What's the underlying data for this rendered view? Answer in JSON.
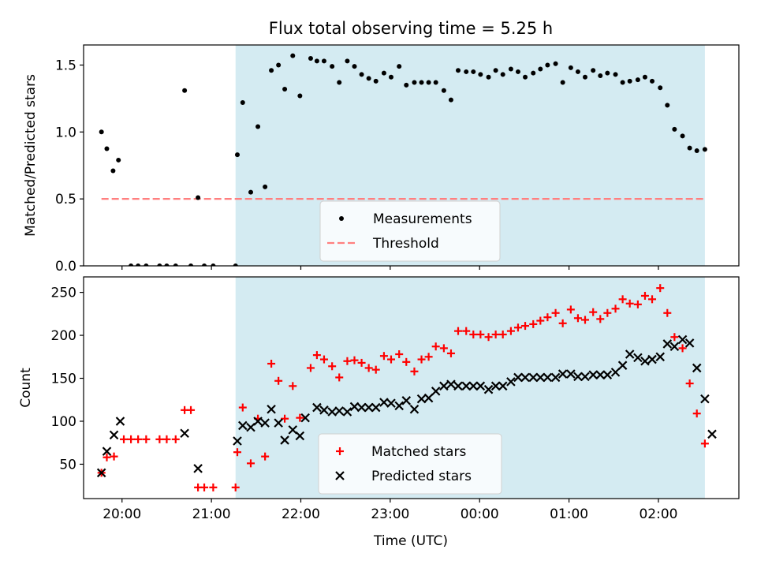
{
  "chart_data": {
    "title": "Flux total observing time = 5.25 h",
    "xlabel": "Time (UTC)",
    "x_unit": "hours after 19:00 UTC (continuous across midnight)",
    "xlim": [
      0.57,
      7.9
    ],
    "x_ticks": [
      1,
      2,
      3,
      4,
      5,
      6,
      7
    ],
    "x_tick_labels": [
      "20:00",
      "21:00",
      "22:00",
      "23:00",
      "00:00",
      "01:00",
      "02:00"
    ],
    "shaded_interval": {
      "start": 2.27,
      "end": 7.52,
      "color": "#d4ebf2"
    },
    "panels": [
      {
        "type": "scatter",
        "ylabel": "Matched/Predicted stars",
        "ylim": [
          0,
          1.65
        ],
        "y_ticks": [
          0.0,
          0.5,
          1.0,
          1.5
        ],
        "y_tick_labels": [
          "0.0",
          "0.5",
          "1.0",
          "1.5"
        ],
        "legend_position": "bottom-center",
        "threshold": {
          "name": "Threshold",
          "value": 0.5,
          "x_start": 0.77,
          "x_end": 7.52,
          "color": "#ff7f7f"
        },
        "series": [
          {
            "name": "Measurements",
            "color": "#000000",
            "marker": "dot",
            "points": [
              [
                0.77,
                1.0
              ],
              [
                0.83,
                0.875
              ],
              [
                0.9,
                0.71
              ],
              [
                0.96,
                0.79
              ],
              [
                1.1,
                0.0
              ],
              [
                1.18,
                0.0
              ],
              [
                1.27,
                0.0
              ],
              [
                1.42,
                0.0
              ],
              [
                1.5,
                0.0
              ],
              [
                1.6,
                0.0
              ],
              [
                1.7,
                1.31
              ],
              [
                1.77,
                0.0
              ],
              [
                1.85,
                0.51
              ],
              [
                1.92,
                0.0
              ],
              [
                2.02,
                0.0
              ],
              [
                2.27,
                0.0
              ],
              [
                2.29,
                0.83
              ],
              [
                2.35,
                1.22
              ],
              [
                2.44,
                0.55
              ],
              [
                2.52,
                1.04
              ],
              [
                2.6,
                0.59
              ],
              [
                2.67,
                1.46
              ],
              [
                2.75,
                1.5
              ],
              [
                2.82,
                1.32
              ],
              [
                2.91,
                1.57
              ],
              [
                2.99,
                1.27
              ],
              [
                3.11,
                1.55
              ],
              [
                3.18,
                1.53
              ],
              [
                3.26,
                1.53
              ],
              [
                3.35,
                1.49
              ],
              [
                3.43,
                1.37
              ],
              [
                3.52,
                1.53
              ],
              [
                3.6,
                1.49
              ],
              [
                3.68,
                1.43
              ],
              [
                3.76,
                1.4
              ],
              [
                3.84,
                1.38
              ],
              [
                3.93,
                1.44
              ],
              [
                4.01,
                1.41
              ],
              [
                4.1,
                1.49
              ],
              [
                4.18,
                1.35
              ],
              [
                4.27,
                1.37
              ],
              [
                4.35,
                1.37
              ],
              [
                4.43,
                1.37
              ],
              [
                4.51,
                1.37
              ],
              [
                4.6,
                1.31
              ],
              [
                4.68,
                1.24
              ],
              [
                4.76,
                1.46
              ],
              [
                4.85,
                1.45
              ],
              [
                4.93,
                1.45
              ],
              [
                5.01,
                1.43
              ],
              [
                5.1,
                1.41
              ],
              [
                5.18,
                1.46
              ],
              [
                5.26,
                1.43
              ],
              [
                5.35,
                1.47
              ],
              [
                5.43,
                1.45
              ],
              [
                5.51,
                1.41
              ],
              [
                5.6,
                1.44
              ],
              [
                5.68,
                1.47
              ],
              [
                5.76,
                1.5
              ],
              [
                5.85,
                1.51
              ],
              [
                5.93,
                1.37
              ],
              [
                6.02,
                1.48
              ],
              [
                6.1,
                1.45
              ],
              [
                6.18,
                1.41
              ],
              [
                6.27,
                1.46
              ],
              [
                6.35,
                1.42
              ],
              [
                6.43,
                1.44
              ],
              [
                6.52,
                1.43
              ],
              [
                6.6,
                1.37
              ],
              [
                6.68,
                1.38
              ],
              [
                6.77,
                1.39
              ],
              [
                6.85,
                1.41
              ],
              [
                6.93,
                1.38
              ],
              [
                7.02,
                1.33
              ],
              [
                7.1,
                1.2
              ],
              [
                7.18,
                1.02
              ],
              [
                7.27,
                0.97
              ],
              [
                7.35,
                0.88
              ],
              [
                7.43,
                0.86
              ],
              [
                7.52,
                0.87
              ]
            ]
          }
        ]
      },
      {
        "type": "scatter",
        "ylabel": "Count",
        "ylim": [
          10,
          268
        ],
        "y_ticks": [
          50,
          100,
          150,
          200,
          250
        ],
        "y_tick_labels": [
          "50",
          "100",
          "150",
          "200",
          "250"
        ],
        "legend_position": "bottom-center",
        "series": [
          {
            "name": "Matched stars",
            "color": "#ff0000",
            "marker": "plus",
            "points": [
              [
                0.77,
                40
              ],
              [
                0.83,
                58
              ],
              [
                0.91,
                59
              ],
              [
                1.02,
                79
              ],
              [
                1.1,
                79
              ],
              [
                1.18,
                79
              ],
              [
                1.27,
                79
              ],
              [
                1.42,
                79
              ],
              [
                1.5,
                79
              ],
              [
                1.6,
                79
              ],
              [
                1.7,
                113
              ],
              [
                1.77,
                113
              ],
              [
                1.85,
                23
              ],
              [
                1.92,
                23
              ],
              [
                2.02,
                23
              ],
              [
                2.27,
                23
              ],
              [
                2.29,
                64
              ],
              [
                2.35,
                116
              ],
              [
                2.44,
                51
              ],
              [
                2.52,
                103
              ],
              [
                2.6,
                59
              ],
              [
                2.67,
                167
              ],
              [
                2.75,
                147
              ],
              [
                2.82,
                103
              ],
              [
                2.91,
                141
              ],
              [
                2.99,
                104
              ],
              [
                3.11,
                162
              ],
              [
                3.18,
                177
              ],
              [
                3.26,
                172
              ],
              [
                3.35,
                164
              ],
              [
                3.43,
                151
              ],
              [
                3.52,
                170
              ],
              [
                3.6,
                171
              ],
              [
                3.68,
                168
              ],
              [
                3.76,
                162
              ],
              [
                3.84,
                160
              ],
              [
                3.93,
                176
              ],
              [
                4.01,
                172
              ],
              [
                4.1,
                178
              ],
              [
                4.18,
                169
              ],
              [
                4.27,
                158
              ],
              [
                4.35,
                172
              ],
              [
                4.43,
                175
              ],
              [
                4.51,
                187
              ],
              [
                4.6,
                185
              ],
              [
                4.68,
                179
              ],
              [
                4.76,
                205
              ],
              [
                4.85,
                205
              ],
              [
                4.93,
                201
              ],
              [
                5.01,
                201
              ],
              [
                5.1,
                198
              ],
              [
                5.18,
                201
              ],
              [
                5.26,
                201
              ],
              [
                5.35,
                205
              ],
              [
                5.43,
                209
              ],
              [
                5.51,
                211
              ],
              [
                5.6,
                213
              ],
              [
                5.68,
                217
              ],
              [
                5.76,
                221
              ],
              [
                5.85,
                226
              ],
              [
                5.93,
                214
              ],
              [
                6.02,
                230
              ],
              [
                6.1,
                220
              ],
              [
                6.18,
                218
              ],
              [
                6.27,
                227
              ],
              [
                6.35,
                219
              ],
              [
                6.43,
                226
              ],
              [
                6.52,
                231
              ],
              [
                6.6,
                242
              ],
              [
                6.68,
                237
              ],
              [
                6.77,
                236
              ],
              [
                6.85,
                246
              ],
              [
                6.93,
                242
              ],
              [
                7.02,
                255
              ],
              [
                7.1,
                226
              ],
              [
                7.18,
                198
              ],
              [
                7.27,
                185
              ],
              [
                7.35,
                144
              ],
              [
                7.43,
                109
              ],
              [
                7.52,
                74
              ]
            ]
          },
          {
            "name": "Predicted stars",
            "color": "#000000",
            "marker": "cross",
            "points": [
              [
                0.77,
                40
              ],
              [
                0.83,
                65
              ],
              [
                0.91,
                84
              ],
              [
                0.98,
                100
              ],
              [
                1.7,
                86
              ],
              [
                1.85,
                45
              ],
              [
                2.29,
                77
              ],
              [
                2.35,
                95
              ],
              [
                2.44,
                93
              ],
              [
                2.52,
                100
              ],
              [
                2.6,
                98
              ],
              [
                2.67,
                114
              ],
              [
                2.75,
                98
              ],
              [
                2.82,
                78
              ],
              [
                2.91,
                90
              ],
              [
                2.99,
                83
              ],
              [
                3.05,
                104
              ],
              [
                3.18,
                116
              ],
              [
                3.26,
                113
              ],
              [
                3.35,
                111
              ],
              [
                3.43,
                112
              ],
              [
                3.52,
                111
              ],
              [
                3.6,
                117
              ],
              [
                3.68,
                116
              ],
              [
                3.76,
                116
              ],
              [
                3.84,
                116
              ],
              [
                3.93,
                122
              ],
              [
                4.01,
                121
              ],
              [
                4.1,
                118
              ],
              [
                4.18,
                124
              ],
              [
                4.27,
                114
              ],
              [
                4.35,
                126
              ],
              [
                4.43,
                127
              ],
              [
                4.51,
                135
              ],
              [
                4.6,
                141
              ],
              [
                4.68,
                143
              ],
              [
                4.76,
                141
              ],
              [
                4.85,
                141
              ],
              [
                4.93,
                141
              ],
              [
                5.01,
                141
              ],
              [
                5.1,
                137
              ],
              [
                5.18,
                141
              ],
              [
                5.26,
                141
              ],
              [
                5.35,
                146
              ],
              [
                5.43,
                151
              ],
              [
                5.51,
                151
              ],
              [
                5.6,
                151
              ],
              [
                5.68,
                151
              ],
              [
                5.76,
                151
              ],
              [
                5.85,
                151
              ],
              [
                5.93,
                155
              ],
              [
                6.02,
                155
              ],
              [
                6.1,
                152
              ],
              [
                6.18,
                152
              ],
              [
                6.27,
                154
              ],
              [
                6.35,
                154
              ],
              [
                6.43,
                154
              ],
              [
                6.52,
                157
              ],
              [
                6.6,
                165
              ],
              [
                6.68,
                178
              ],
              [
                6.77,
                174
              ],
              [
                6.85,
                170
              ],
              [
                6.93,
                172
              ],
              [
                7.02,
                175
              ],
              [
                7.1,
                190
              ],
              [
                7.18,
                187
              ],
              [
                7.27,
                195
              ],
              [
                7.35,
                191
              ],
              [
                7.43,
                162
              ],
              [
                7.52,
                126
              ],
              [
                7.6,
                85
              ]
            ]
          }
        ]
      }
    ]
  }
}
